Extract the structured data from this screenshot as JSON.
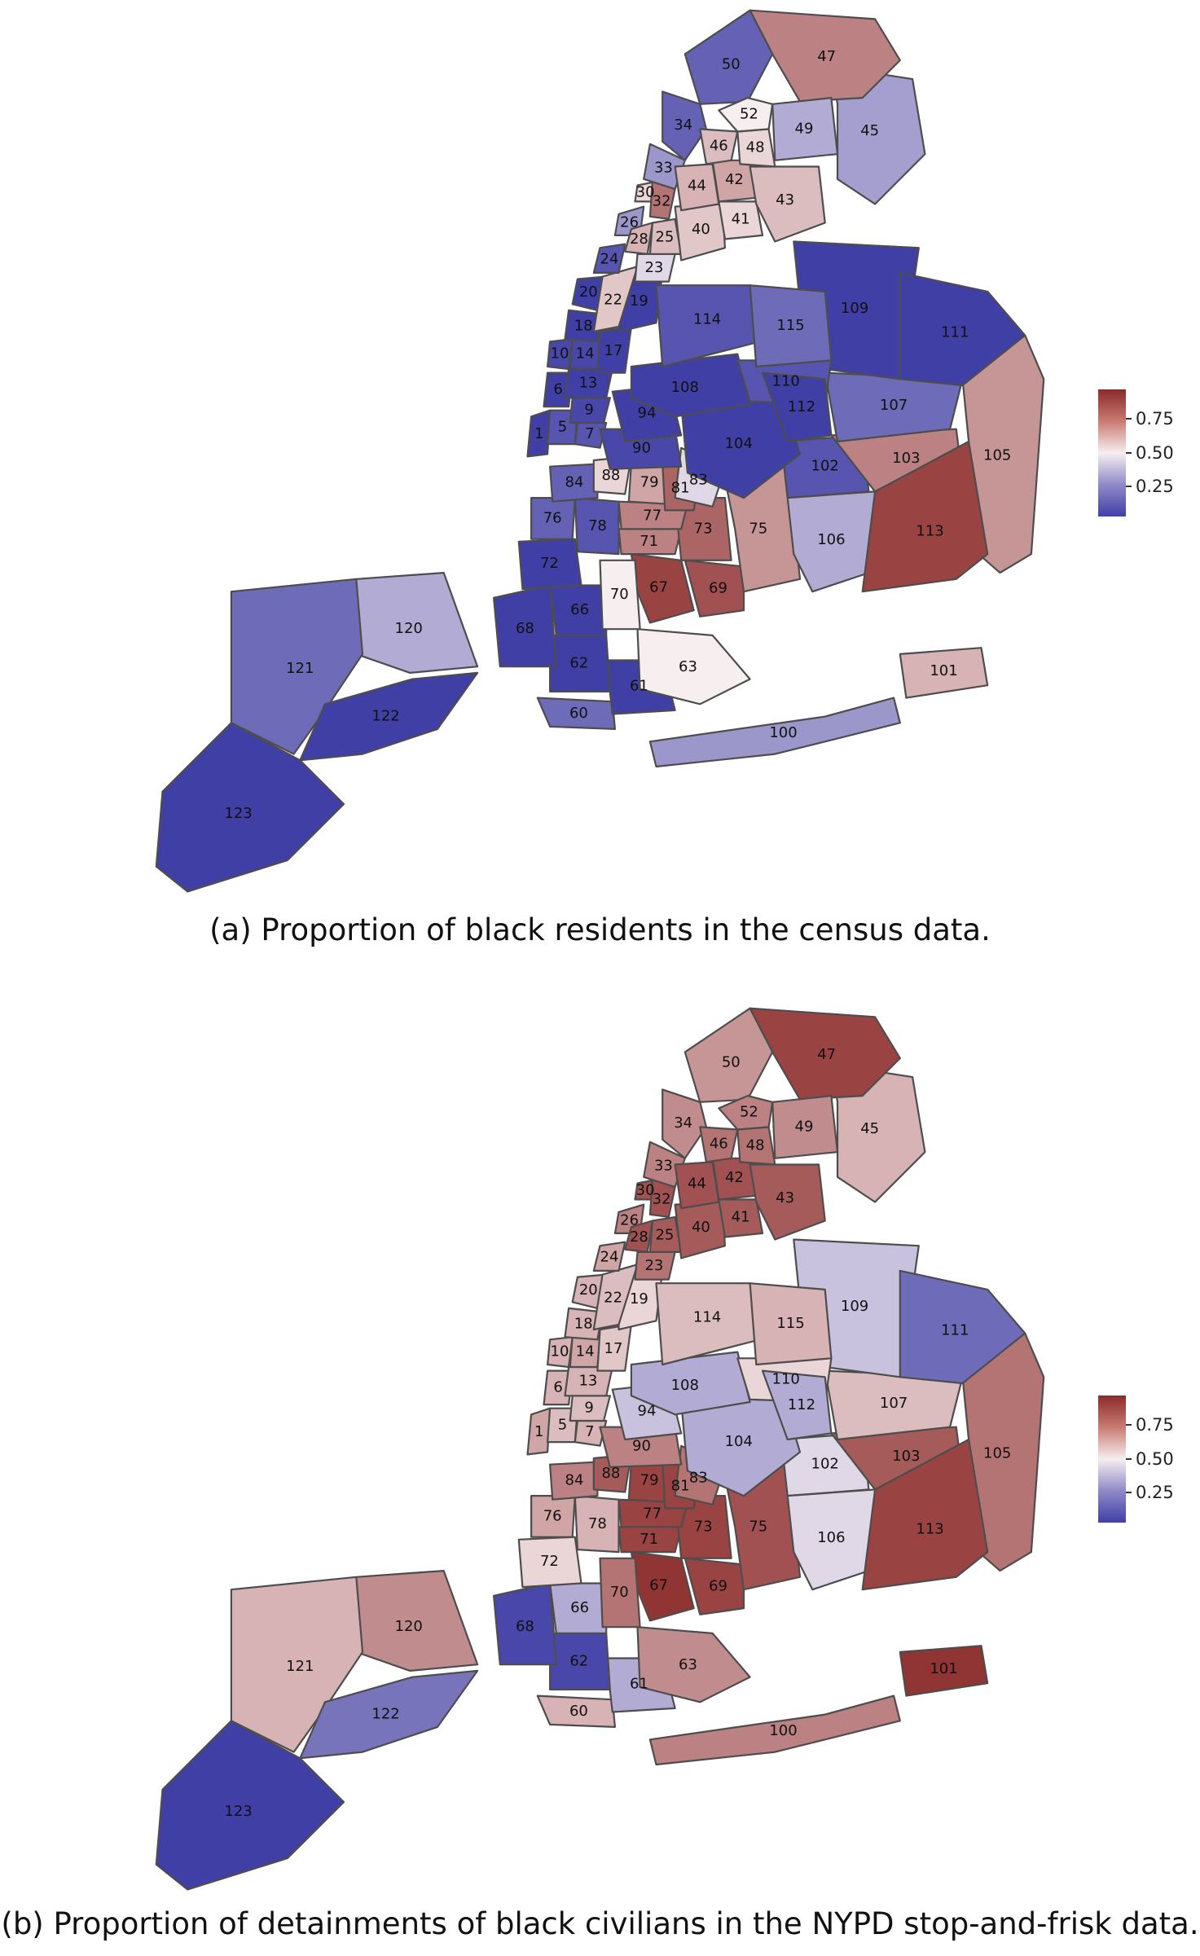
{
  "legend": {
    "ticks": [
      "0.75",
      "0.50",
      "0.25"
    ],
    "colors": {
      "low": "#403fa6",
      "mid": "#f7eef0",
      "high": "#8b2a2a"
    }
  },
  "panels": [
    {
      "id": "a",
      "caption": "(a) Proportion of black residents in the census data.",
      "precincts": [
        {
          "label": "1",
          "value": 0.08
        },
        {
          "label": "5",
          "value": 0.15
        },
        {
          "label": "6",
          "value": 0.08
        },
        {
          "label": "7",
          "value": 0.15
        },
        {
          "label": "9",
          "value": 0.12
        },
        {
          "label": "10",
          "value": 0.12
        },
        {
          "label": "13",
          "value": 0.1
        },
        {
          "label": "14",
          "value": 0.12
        },
        {
          "label": "17",
          "value": 0.07
        },
        {
          "label": "18",
          "value": 0.08
        },
        {
          "label": "19",
          "value": 0.06
        },
        {
          "label": "20",
          "value": 0.07
        },
        {
          "label": "22",
          "value": 0.58
        },
        {
          "label": "23",
          "value": 0.45
        },
        {
          "label": "24",
          "value": 0.15
        },
        {
          "label": "25",
          "value": 0.6
        },
        {
          "label": "26",
          "value": 0.3
        },
        {
          "label": "28",
          "value": 0.62
        },
        {
          "label": "30",
          "value": 0.55
        },
        {
          "label": "32",
          "value": 0.75
        },
        {
          "label": "33",
          "value": 0.3
        },
        {
          "label": "34",
          "value": 0.18
        },
        {
          "label": "40",
          "value": 0.58
        },
        {
          "label": "41",
          "value": 0.55
        },
        {
          "label": "42",
          "value": 0.65
        },
        {
          "label": "43",
          "value": 0.6
        },
        {
          "label": "44",
          "value": 0.62
        },
        {
          "label": "45",
          "value": 0.32
        },
        {
          "label": "46",
          "value": 0.6
        },
        {
          "label": "47",
          "value": 0.72
        },
        {
          "label": "48",
          "value": 0.55
        },
        {
          "label": "49",
          "value": 0.35
        },
        {
          "label": "50",
          "value": 0.18
        },
        {
          "label": "52",
          "value": 0.5
        },
        {
          "label": "60",
          "value": 0.2
        },
        {
          "label": "61",
          "value": 0.1
        },
        {
          "label": "62",
          "value": 0.05
        },
        {
          "label": "63",
          "value": 0.5
        },
        {
          "label": "66",
          "value": 0.05
        },
        {
          "label": "67",
          "value": 0.85
        },
        {
          "label": "68",
          "value": 0.05
        },
        {
          "label": "69",
          "value": 0.82
        },
        {
          "label": "70",
          "value": 0.5
        },
        {
          "label": "71",
          "value": 0.72
        },
        {
          "label": "72",
          "value": 0.1
        },
        {
          "label": "73",
          "value": 0.78
        },
        {
          "label": "75",
          "value": 0.68
        },
        {
          "label": "76",
          "value": 0.18
        },
        {
          "label": "77",
          "value": 0.72
        },
        {
          "label": "78",
          "value": 0.15
        },
        {
          "label": "79",
          "value": 0.65
        },
        {
          "label": "81",
          "value": 0.78
        },
        {
          "label": "83",
          "value": 0.45
        },
        {
          "label": "84",
          "value": 0.18
        },
        {
          "label": "88",
          "value": 0.55
        },
        {
          "label": "90",
          "value": 0.12
        },
        {
          "label": "94",
          "value": 0.05
        },
        {
          "label": "100",
          "value": 0.3
        },
        {
          "label": "101",
          "value": 0.62
        },
        {
          "label": "102",
          "value": 0.15
        },
        {
          "label": "103",
          "value": 0.72
        },
        {
          "label": "104",
          "value": 0.05
        },
        {
          "label": "105",
          "value": 0.68
        },
        {
          "label": "106",
          "value": 0.35
        },
        {
          "label": "107",
          "value": 0.2
        },
        {
          "label": "108",
          "value": 0.05
        },
        {
          "label": "109",
          "value": 0.05
        },
        {
          "label": "110",
          "value": 0.15
        },
        {
          "label": "111",
          "value": 0.05
        },
        {
          "label": "112",
          "value": 0.05
        },
        {
          "label": "113",
          "value": 0.85
        },
        {
          "label": "114",
          "value": 0.15
        },
        {
          "label": "115",
          "value": 0.2
        },
        {
          "label": "120",
          "value": 0.35
        },
        {
          "label": "121",
          "value": 0.2
        },
        {
          "label": "122",
          "value": 0.05
        },
        {
          "label": "123",
          "value": 0.05
        }
      ]
    },
    {
      "id": "b",
      "caption": "(b) Proportion of detainments of black civilians in the NYPD stop-and-frisk data.",
      "precincts": [
        {
          "label": "1",
          "value": 0.65
        },
        {
          "label": "5",
          "value": 0.6
        },
        {
          "label": "6",
          "value": 0.62
        },
        {
          "label": "7",
          "value": 0.62
        },
        {
          "label": "9",
          "value": 0.6
        },
        {
          "label": "10",
          "value": 0.62
        },
        {
          "label": "13",
          "value": 0.62
        },
        {
          "label": "14",
          "value": 0.65
        },
        {
          "label": "17",
          "value": 0.58
        },
        {
          "label": "18",
          "value": 0.62
        },
        {
          "label": "19",
          "value": 0.55
        },
        {
          "label": "20",
          "value": 0.62
        },
        {
          "label": "22",
          "value": 0.6
        },
        {
          "label": "23",
          "value": 0.75
        },
        {
          "label": "24",
          "value": 0.65
        },
        {
          "label": "25",
          "value": 0.8
        },
        {
          "label": "26",
          "value": 0.72
        },
        {
          "label": "28",
          "value": 0.82
        },
        {
          "label": "30",
          "value": 0.82
        },
        {
          "label": "32",
          "value": 0.82
        },
        {
          "label": "33",
          "value": 0.72
        },
        {
          "label": "34",
          "value": 0.7
        },
        {
          "label": "40",
          "value": 0.8
        },
        {
          "label": "41",
          "value": 0.8
        },
        {
          "label": "42",
          "value": 0.82
        },
        {
          "label": "43",
          "value": 0.8
        },
        {
          "label": "44",
          "value": 0.82
        },
        {
          "label": "45",
          "value": 0.62
        },
        {
          "label": "46",
          "value": 0.75
        },
        {
          "label": "47",
          "value": 0.85
        },
        {
          "label": "48",
          "value": 0.75
        },
        {
          "label": "49",
          "value": 0.7
        },
        {
          "label": "50",
          "value": 0.68
        },
        {
          "label": "52",
          "value": 0.72
        },
        {
          "label": "60",
          "value": 0.62
        },
        {
          "label": "61",
          "value": 0.35
        },
        {
          "label": "62",
          "value": 0.12
        },
        {
          "label": "63",
          "value": 0.7
        },
        {
          "label": "66",
          "value": 0.35
        },
        {
          "label": "67",
          "value": 0.88
        },
        {
          "label": "68",
          "value": 0.12
        },
        {
          "label": "69",
          "value": 0.85
        },
        {
          "label": "70",
          "value": 0.75
        },
        {
          "label": "71",
          "value": 0.85
        },
        {
          "label": "72",
          "value": 0.55
        },
        {
          "label": "73",
          "value": 0.85
        },
        {
          "label": "75",
          "value": 0.82
        },
        {
          "label": "76",
          "value": 0.65
        },
        {
          "label": "77",
          "value": 0.85
        },
        {
          "label": "78",
          "value": 0.62
        },
        {
          "label": "79",
          "value": 0.85
        },
        {
          "label": "81",
          "value": 0.85
        },
        {
          "label": "83",
          "value": 0.75
        },
        {
          "label": "84",
          "value": 0.72
        },
        {
          "label": "88",
          "value": 0.8
        },
        {
          "label": "90",
          "value": 0.72
        },
        {
          "label": "94",
          "value": 0.4
        },
        {
          "label": "100",
          "value": 0.72
        },
        {
          "label": "101",
          "value": 0.88
        },
        {
          "label": "102",
          "value": 0.45
        },
        {
          "label": "103",
          "value": 0.8
        },
        {
          "label": "104",
          "value": 0.35
        },
        {
          "label": "105",
          "value": 0.75
        },
        {
          "label": "106",
          "value": 0.45
        },
        {
          "label": "107",
          "value": 0.6
        },
        {
          "label": "108",
          "value": 0.35
        },
        {
          "label": "109",
          "value": 0.4
        },
        {
          "label": "110",
          "value": 0.55
        },
        {
          "label": "111",
          "value": 0.2
        },
        {
          "label": "112",
          "value": 0.35
        },
        {
          "label": "113",
          "value": 0.85
        },
        {
          "label": "114",
          "value": 0.6
        },
        {
          "label": "115",
          "value": 0.62
        },
        {
          "label": "120",
          "value": 0.7
        },
        {
          "label": "121",
          "value": 0.62
        },
        {
          "label": "122",
          "value": 0.22
        },
        {
          "label": "123",
          "value": 0.1
        }
      ]
    }
  ]
}
